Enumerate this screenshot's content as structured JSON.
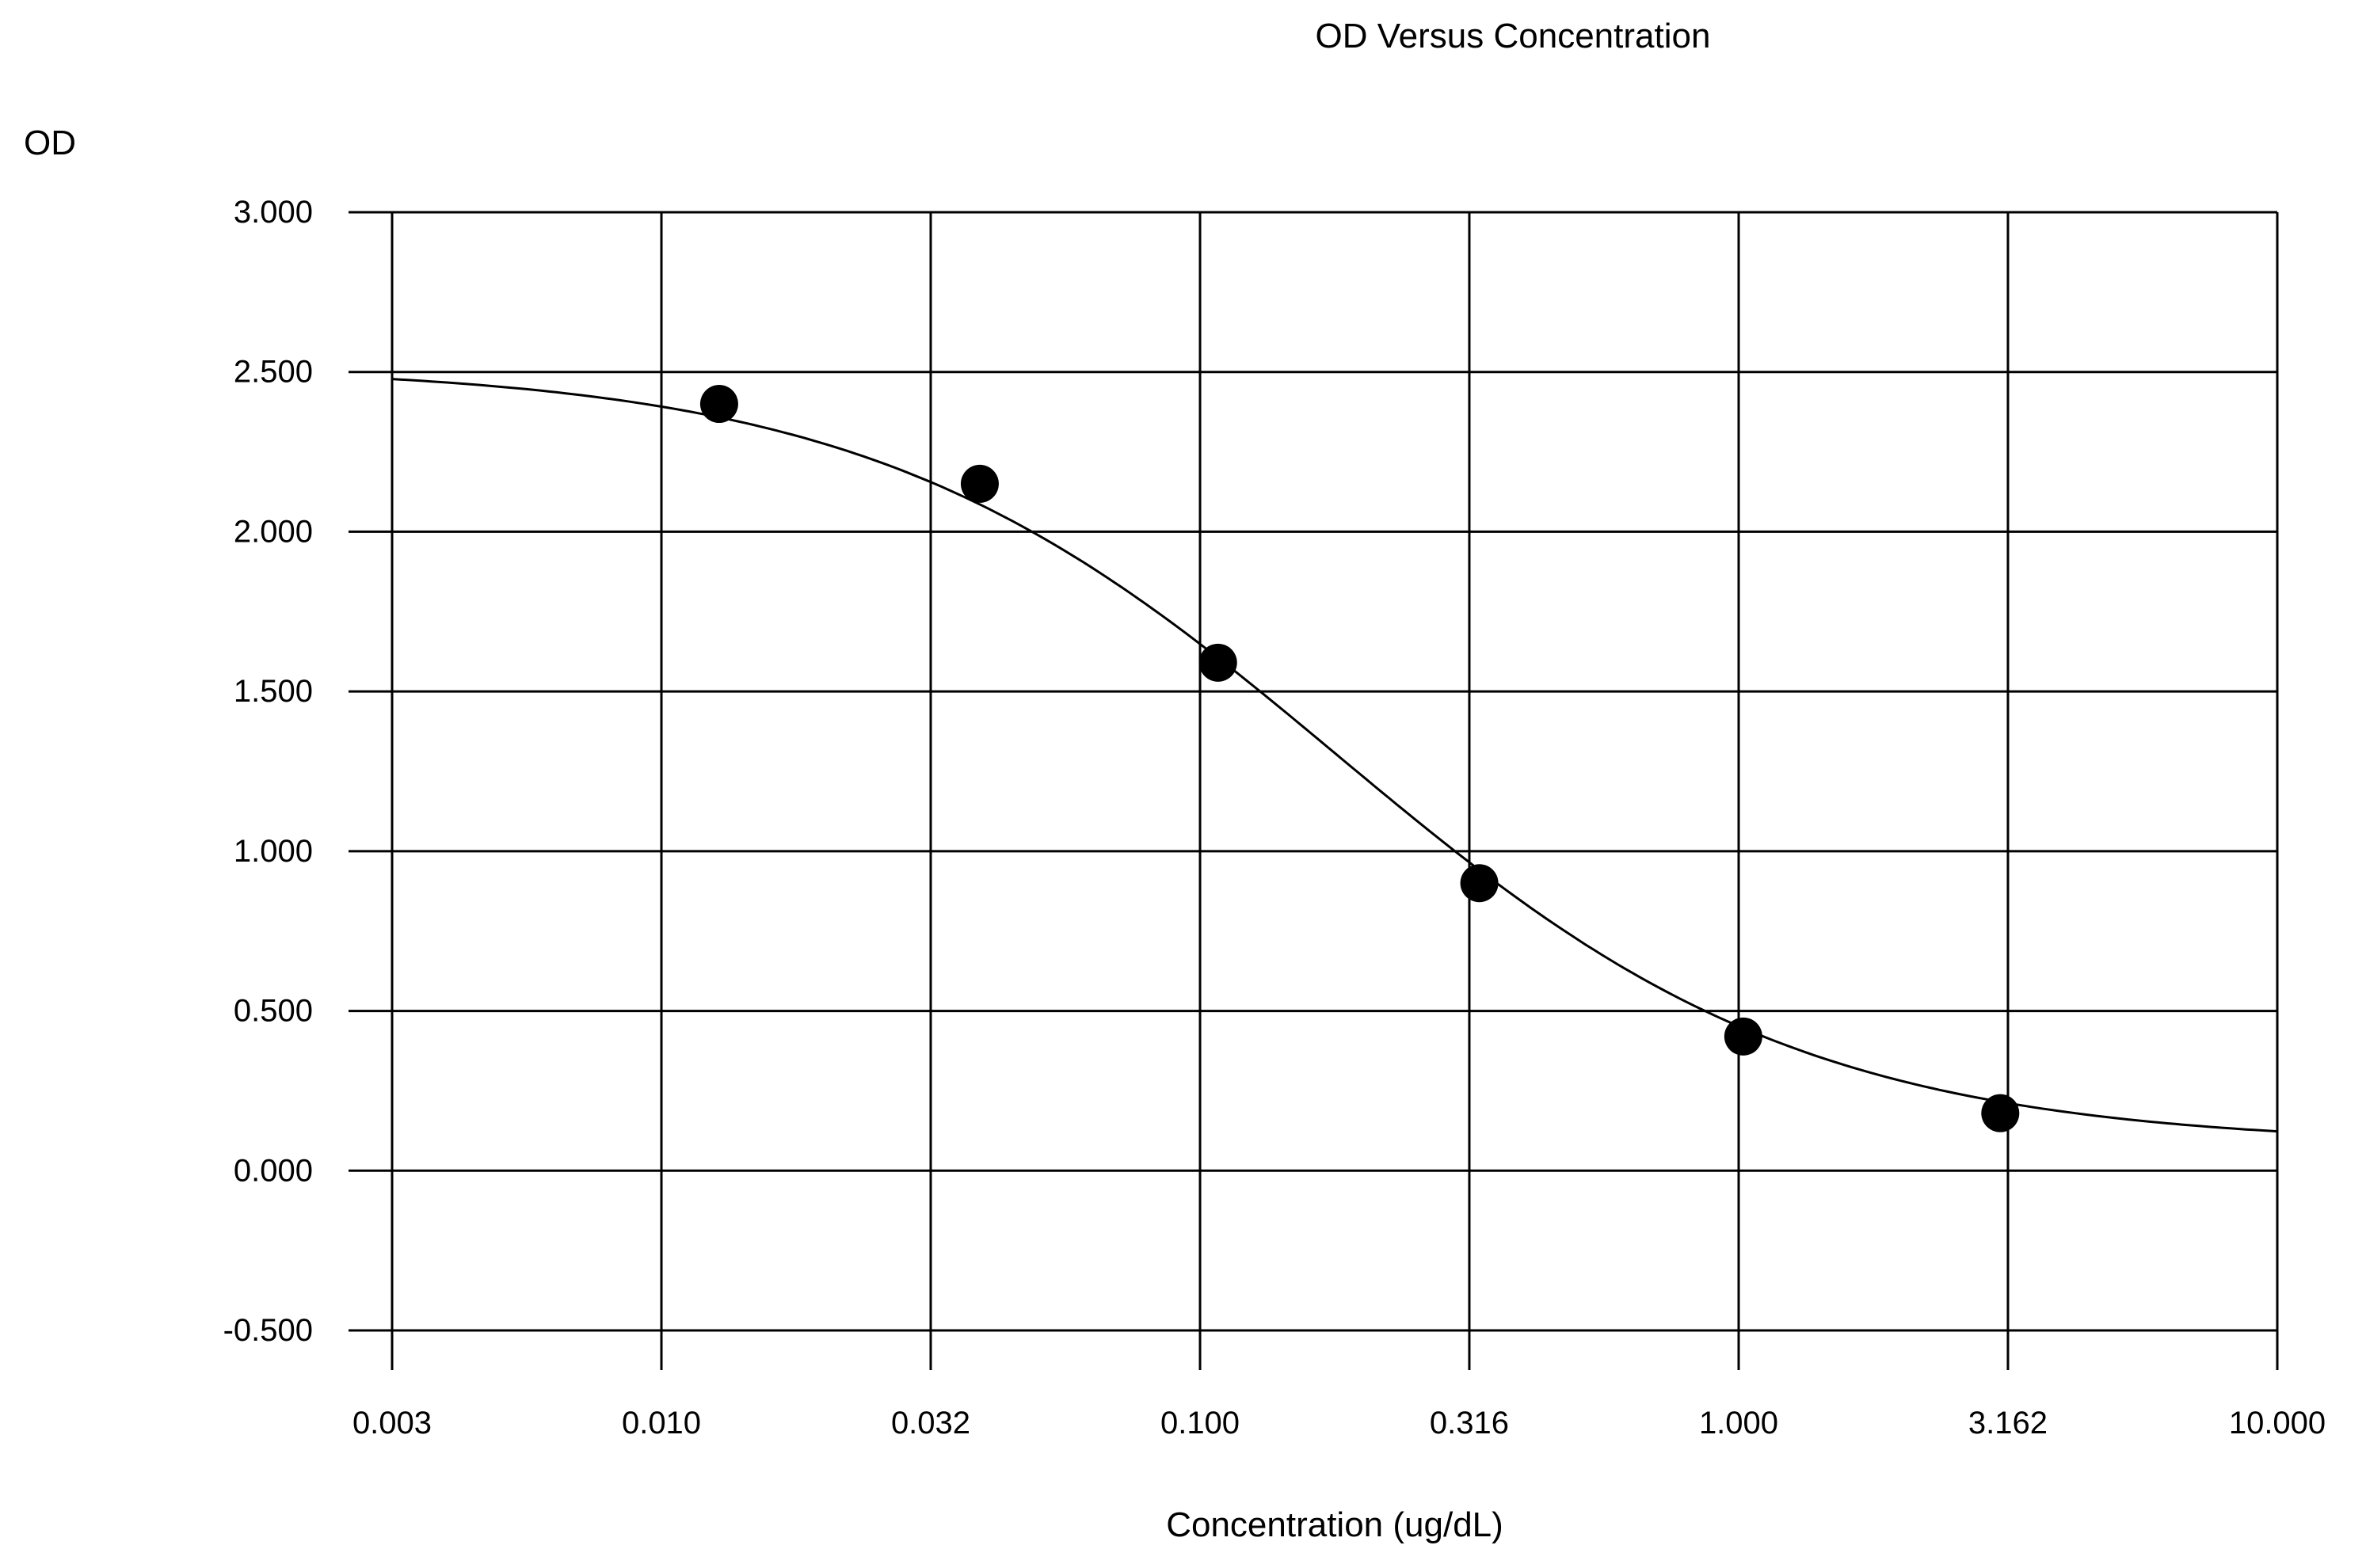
{
  "chart_data": {
    "type": "scatter",
    "title": "OD Versus Concentration",
    "ylabel": "OD",
    "xlabel": "Concentration (ug/dL)",
    "x_scale": "log",
    "xlim": [
      0.003162,
      10.0
    ],
    "ylim": [
      -0.5,
      3.0
    ],
    "grid": true,
    "x_ticks": [
      {
        "value": 0.003162,
        "label": "0.003"
      },
      {
        "value": 0.01,
        "label": "0.010"
      },
      {
        "value": 0.03162,
        "label": "0.032"
      },
      {
        "value": 0.1,
        "label": "0.100"
      },
      {
        "value": 0.3162,
        "label": "0.316"
      },
      {
        "value": 1.0,
        "label": "1.000"
      },
      {
        "value": 3.162,
        "label": "3.162"
      },
      {
        "value": 10.0,
        "label": "10.000"
      }
    ],
    "y_ticks": [
      {
        "value": 3.0,
        "label": "3.000"
      },
      {
        "value": 2.5,
        "label": "2.500"
      },
      {
        "value": 2.0,
        "label": "2.000"
      },
      {
        "value": 1.5,
        "label": "1.500"
      },
      {
        "value": 1.0,
        "label": "1.000"
      },
      {
        "value": 0.5,
        "label": "0.500"
      },
      {
        "value": 0.0,
        "label": "0.000"
      },
      {
        "value": -0.5,
        "label": "-0.500"
      }
    ],
    "series": [
      {
        "points": [
          {
            "x": 0.0128,
            "y": 2.4
          },
          {
            "x": 0.039,
            "y": 2.15
          },
          {
            "x": 0.108,
            "y": 1.59
          },
          {
            "x": 0.33,
            "y": 0.9
          },
          {
            "x": 1.02,
            "y": 0.42
          },
          {
            "x": 3.06,
            "y": 0.18
          }
        ]
      }
    ],
    "fit_curve": {
      "type": "four-parameter-logistic",
      "top": 2.52,
      "bottom": 0.08,
      "ec50": 0.18,
      "hill": 1.0
    }
  }
}
